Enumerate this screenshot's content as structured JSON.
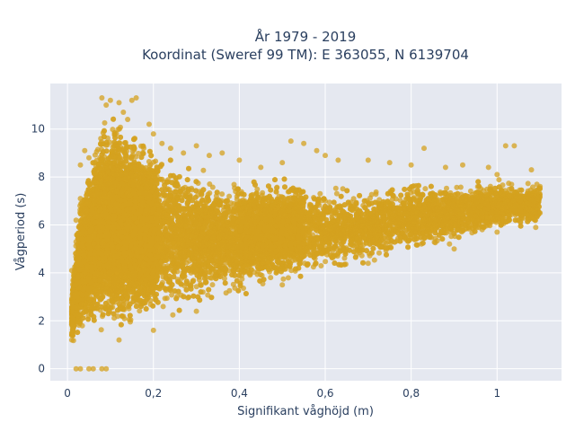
{
  "chart_data": {
    "type": "scatter",
    "title_line1": "År 1979 - 2019",
    "title_line2": "Koordinat (Sweref 99 TM): E 363055, N 6139704",
    "xlabel": "Signifikant våghöjd (m)",
    "ylabel": "Vågperiod (s)",
    "xlim": [
      -0.04,
      1.15
    ],
    "ylim": [
      -0.5,
      11.9
    ],
    "x_ticks": [
      0,
      0.2,
      0.4,
      0.6,
      0.8,
      1
    ],
    "x_tick_labels": [
      "0",
      "0,2",
      "0,4",
      "0,6",
      "0,8",
      "1"
    ],
    "y_ticks": [
      0,
      2,
      4,
      6,
      8,
      10
    ],
    "y_tick_labels": [
      "0",
      "2",
      "4",
      "6",
      "8",
      "10"
    ],
    "grid": true,
    "marker_color": "#d4a21f",
    "plot_bgcolor": "#e5e8f0",
    "series": [
      {
        "points": [
          [
            0.02,
            0
          ],
          [
            0.03,
            0
          ],
          [
            0.05,
            0
          ],
          [
            0.06,
            0
          ],
          [
            0.08,
            0
          ],
          [
            0.09,
            0
          ],
          [
            0.01,
            1.2
          ],
          [
            0.01,
            1.9
          ],
          [
            0.01,
            4.1
          ],
          [
            0.02,
            3.7
          ],
          [
            0.02,
            5.3
          ],
          [
            0.03,
            8.5
          ],
          [
            0.03,
            7.1
          ],
          [
            0.02,
            6.2
          ],
          [
            0.04,
            9.1
          ],
          [
            0.05,
            8.8
          ],
          [
            0.08,
            11.3
          ],
          [
            0.09,
            11.0
          ],
          [
            0.1,
            11.2
          ],
          [
            0.12,
            11.1
          ],
          [
            0.13,
            10.7
          ],
          [
            0.15,
            11.2
          ],
          [
            0.16,
            11.3
          ],
          [
            0.14,
            10.4
          ],
          [
            0.19,
            10.2
          ],
          [
            0.2,
            9.8
          ],
          [
            0.22,
            9.4
          ],
          [
            0.24,
            9.2
          ],
          [
            0.27,
            9.0
          ],
          [
            0.3,
            9.3
          ],
          [
            0.33,
            8.9
          ],
          [
            0.36,
            9.0
          ],
          [
            0.4,
            8.7
          ],
          [
            0.45,
            8.4
          ],
          [
            0.5,
            8.6
          ],
          [
            0.52,
            9.5
          ],
          [
            0.55,
            9.4
          ],
          [
            0.58,
            9.1
          ],
          [
            0.6,
            8.9
          ],
          [
            0.63,
            8.7
          ],
          [
            0.7,
            8.7
          ],
          [
            0.75,
            8.6
          ],
          [
            0.8,
            8.5
          ],
          [
            0.83,
            9.2
          ],
          [
            0.88,
            8.4
          ],
          [
            0.92,
            8.5
          ],
          [
            0.98,
            8.4
          ],
          [
            1.0,
            8.1
          ],
          [
            1.02,
            9.3
          ],
          [
            1.04,
            9.3
          ],
          [
            1.08,
            8.3
          ],
          [
            1.1,
            7.6
          ],
          [
            1.1,
            6.5
          ],
          [
            1.09,
            5.9
          ],
          [
            0.3,
            2.4
          ],
          [
            0.5,
            3.5
          ],
          [
            0.7,
            4.4
          ],
          [
            0.9,
            5.0
          ],
          [
            1.0,
            5.7
          ],
          [
            0.12,
            1.2
          ],
          [
            0.2,
            1.6
          ]
        ]
      }
    ],
    "cloud": {
      "lower_boundary": [
        [
          0.01,
          1.0
        ],
        [
          0.1,
          1.4
        ],
        [
          0.2,
          1.8
        ],
        [
          0.3,
          2.4
        ],
        [
          0.4,
          2.9
        ],
        [
          0.5,
          3.4
        ],
        [
          0.6,
          3.8
        ],
        [
          0.7,
          4.3
        ],
        [
          0.8,
          4.7
        ],
        [
          0.9,
          5.1
        ],
        [
          1.0,
          5.6
        ],
        [
          1.1,
          6.0
        ]
      ],
      "upper_boundary": [
        [
          0.01,
          3.5
        ],
        [
          0.03,
          7.5
        ],
        [
          0.06,
          9.5
        ],
        [
          0.08,
          10.8
        ],
        [
          0.15,
          10.2
        ],
        [
          0.2,
          9.4
        ],
        [
          0.3,
          8.6
        ],
        [
          0.4,
          8.1
        ],
        [
          0.5,
          8.0
        ],
        [
          0.6,
          7.8
        ],
        [
          0.7,
          7.7
        ],
        [
          0.8,
          7.9
        ],
        [
          0.9,
          8.0
        ],
        [
          1.0,
          8.0
        ],
        [
          1.1,
          7.9
        ]
      ],
      "point_count": 18000
    }
  }
}
